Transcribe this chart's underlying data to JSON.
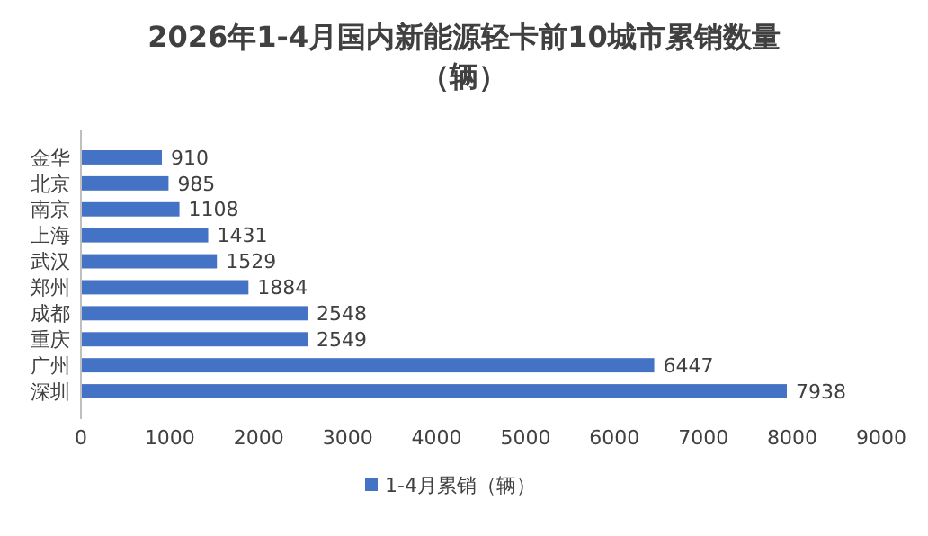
{
  "chart_data": {
    "type": "bar",
    "orientation": "horizontal",
    "title": "2026年1-4月国内新能源轻卡前10城市累销数量（辆）",
    "categories": [
      "金华",
      "北京",
      "南京",
      "上海",
      "武汉",
      "郑州",
      "成都",
      "重庆",
      "广州",
      "深圳"
    ],
    "series": [
      {
        "name": "1-4月累销（辆）",
        "color": "#4472c4",
        "values": [
          910,
          985,
          1108,
          1431,
          1529,
          1884,
          2548,
          2549,
          6447,
          7938
        ]
      }
    ],
    "xlim": [
      0,
      9000
    ],
    "xticks": [
      0,
      1000,
      2000,
      3000,
      4000,
      5000,
      6000,
      7000,
      8000,
      9000
    ],
    "data_labels": true,
    "legend": "bottom",
    "grid": false
  }
}
